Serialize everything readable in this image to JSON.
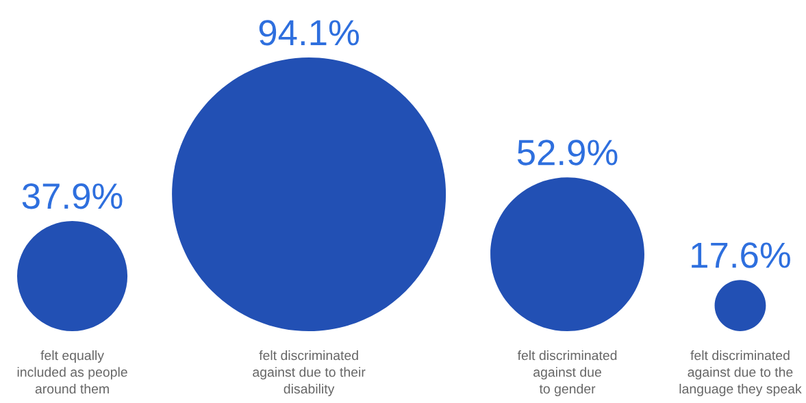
{
  "chart_data": {
    "type": "other",
    "categories": [
      "felt equally\nincluded as people\naround them",
      "felt discriminated\nagainst due to their\ndisability",
      "felt discriminated\nagainst due\nto gender",
      "felt discriminated\nagainst due to the\nlanguage they speak"
    ],
    "values": [
      37.9,
      94.1,
      52.9,
      17.6
    ],
    "value_labels": [
      "37.9%",
      "94.1%",
      "52.9%",
      "17.6%"
    ],
    "color": "#2250b4"
  }
}
